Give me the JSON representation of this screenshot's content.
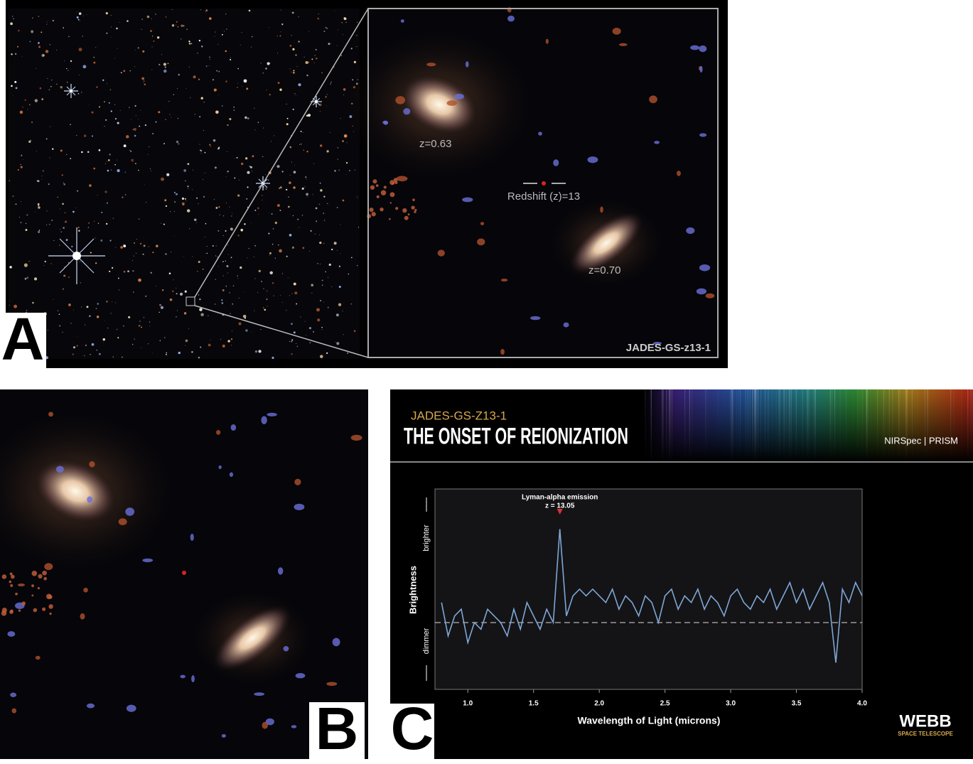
{
  "panel_labels": [
    "A",
    "B",
    "C"
  ],
  "panel_a": {
    "annotations": [
      "z=0.63",
      "Redshift (z)=13",
      "z=0.70"
    ],
    "caption": "JADES-GS-z13-1"
  },
  "chart_data": {
    "type": "line",
    "supertitle": "JADES-GS-Z13-1",
    "title": "THE ONSET OF REIONIZATION",
    "subtitle": "NIRSpec | PRISM",
    "x_label": "Wavelength of Light (microns)",
    "y_label": "Brightness",
    "y_high_label": "brighter",
    "y_low_label": "dimmer",
    "annotation": {
      "text": "Lyman-alpha emission",
      "subtext": "z = 13.05",
      "x": 1.7
    },
    "xlim": [
      0.75,
      4.0
    ],
    "ylim": [
      -1,
      2
    ],
    "xticks": [
      {
        "value": 1,
        "label": "1.0"
      },
      {
        "value": 1.5,
        "label": "1.5"
      },
      {
        "value": 2,
        "label": "2.0"
      },
      {
        "value": 2.5,
        "label": "2.5"
      },
      {
        "value": 3,
        "label": "3.0"
      },
      {
        "value": 3.5,
        "label": "3.5"
      },
      {
        "value": 4,
        "label": "4.0"
      }
    ],
    "baseline": 0,
    "x": [
      0.8,
      0.85,
      0.9,
      0.95,
      1.0,
      1.05,
      1.1,
      1.15,
      1.2,
      1.25,
      1.3,
      1.35,
      1.4,
      1.45,
      1.5,
      1.55,
      1.6,
      1.65,
      1.7,
      1.75,
      1.8,
      1.85,
      1.9,
      1.95,
      2.0,
      2.05,
      2.1,
      2.15,
      2.2,
      2.25,
      2.3,
      2.35,
      2.4,
      2.45,
      2.5,
      2.55,
      2.6,
      2.65,
      2.7,
      2.75,
      2.8,
      2.85,
      2.9,
      2.95,
      3.0,
      3.05,
      3.1,
      3.15,
      3.2,
      3.25,
      3.3,
      3.35,
      3.4,
      3.45,
      3.5,
      3.55,
      3.6,
      3.65,
      3.7,
      3.75,
      3.8,
      3.85,
      3.9,
      3.95,
      4.0
    ],
    "series": [
      {
        "color": "#7fa6d6",
        "values": [
          0.3,
          -0.2,
          0.1,
          0.2,
          -0.3,
          0.0,
          -0.1,
          0.2,
          0.1,
          0.0,
          -0.2,
          0.2,
          -0.1,
          0.3,
          0.1,
          -0.1,
          0.2,
          0.0,
          1.4,
          0.1,
          0.4,
          0.5,
          0.4,
          0.5,
          0.4,
          0.3,
          0.5,
          0.2,
          0.4,
          0.3,
          0.1,
          0.4,
          0.3,
          0.0,
          0.4,
          0.5,
          0.2,
          0.4,
          0.3,
          0.5,
          0.2,
          0.4,
          0.3,
          0.1,
          0.4,
          0.5,
          0.3,
          0.2,
          0.4,
          0.3,
          0.5,
          0.2,
          0.4,
          0.6,
          0.3,
          0.5,
          0.2,
          0.4,
          0.6,
          0.3,
          -0.6,
          0.5,
          0.3,
          0.6,
          0.4
        ]
      }
    ]
  },
  "logo": {
    "title": "WEBB",
    "subtitle": "SPACE TELESCOPE"
  }
}
